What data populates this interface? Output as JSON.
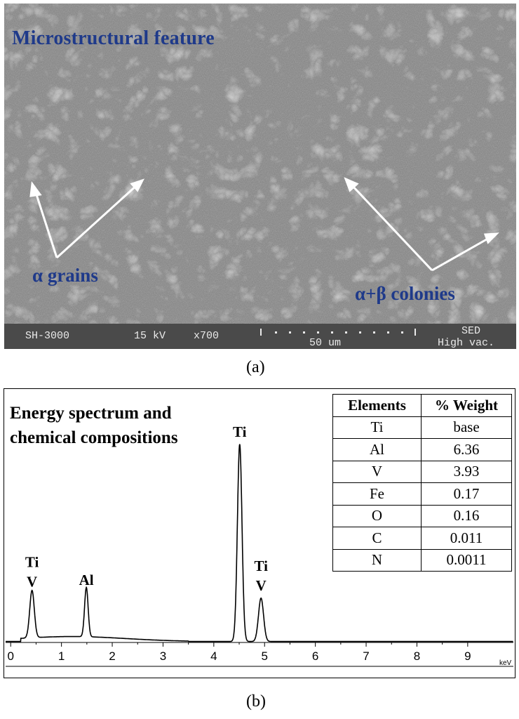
{
  "panel_a": {
    "title": "Microstructural feature",
    "label_alpha": "α grains",
    "label_colonies": "α+β colonies",
    "info_bar": {
      "model": "SH-3000",
      "voltage": "15 kV",
      "magnification": "x700",
      "scale": "50 um",
      "mode": "SED",
      "vacuum": "High vac."
    },
    "caption": "(a)"
  },
  "panel_b": {
    "title_line1": "Energy spectrum and",
    "title_line2": "chemical compositions",
    "caption": "(b)",
    "table": {
      "headers": [
        "Elements",
        "% Weight"
      ],
      "rows": [
        [
          "Ti",
          "base"
        ],
        [
          "Al",
          "6.36"
        ],
        [
          "V",
          "3.93"
        ],
        [
          "Fe",
          "0.17"
        ],
        [
          "O",
          "0.16"
        ],
        [
          "C",
          "0.011"
        ],
        [
          "N",
          "0.0011"
        ]
      ]
    }
  },
  "chart_data": {
    "type": "line",
    "xlabel": "keV",
    "ylabel": "",
    "xlim": [
      -0.1,
      9.9
    ],
    "ylim": [
      0,
      100
    ],
    "x_ticks": [
      "0",
      "1",
      "2",
      "3",
      "4",
      "5",
      "6",
      "7",
      "8",
      "9"
    ],
    "series": [
      {
        "peaks": [
          {
            "label": "Ti\nV",
            "x": 0.42,
            "y": 24
          },
          {
            "label": "Al",
            "x": 1.49,
            "y": 25
          },
          {
            "label": "Ti",
            "x": 4.51,
            "y": 100
          },
          {
            "label": "Ti\nV",
            "x": 4.93,
            "y": 22
          }
        ]
      }
    ]
  }
}
